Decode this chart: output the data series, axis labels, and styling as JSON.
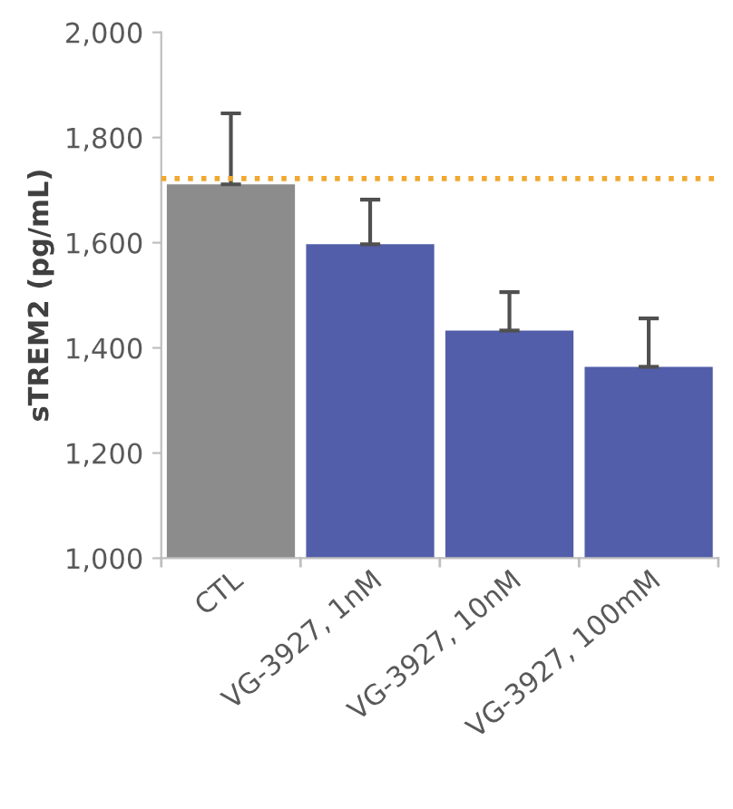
{
  "chart_data": {
    "type": "bar",
    "ylabel": "sTREM2 (pg/mL)",
    "categories": [
      "CTL",
      "VG-3927, 1nM",
      "VG-3927, 10nM",
      "VG-3927, 100mM"
    ],
    "values": [
      1711,
      1597,
      1433,
      1364
    ],
    "colors": [
      "#8c8c8c",
      "#525ea9",
      "#525ea9",
      "#525ea9"
    ],
    "errors": [
      [
        1711,
        1846
      ],
      [
        1597,
        1682
      ],
      [
        1433,
        1506
      ],
      [
        1364,
        1456
      ]
    ],
    "ylim": [
      1000,
      2000
    ],
    "yticks": [
      {
        "value": 1000,
        "label": "1,000"
      },
      {
        "value": 1200,
        "label": "1,200"
      },
      {
        "value": 1400,
        "label": "1,400"
      },
      {
        "value": 1600,
        "label": "1,600"
      },
      {
        "value": 1800,
        "label": "1,800"
      },
      {
        "value": 2000,
        "label": "2,000"
      }
    ],
    "ref_lines": [
      {
        "axis": "y",
        "value": 1722,
        "color": "#f0a830",
        "line_style": "dotted"
      }
    ],
    "grid": false
  }
}
